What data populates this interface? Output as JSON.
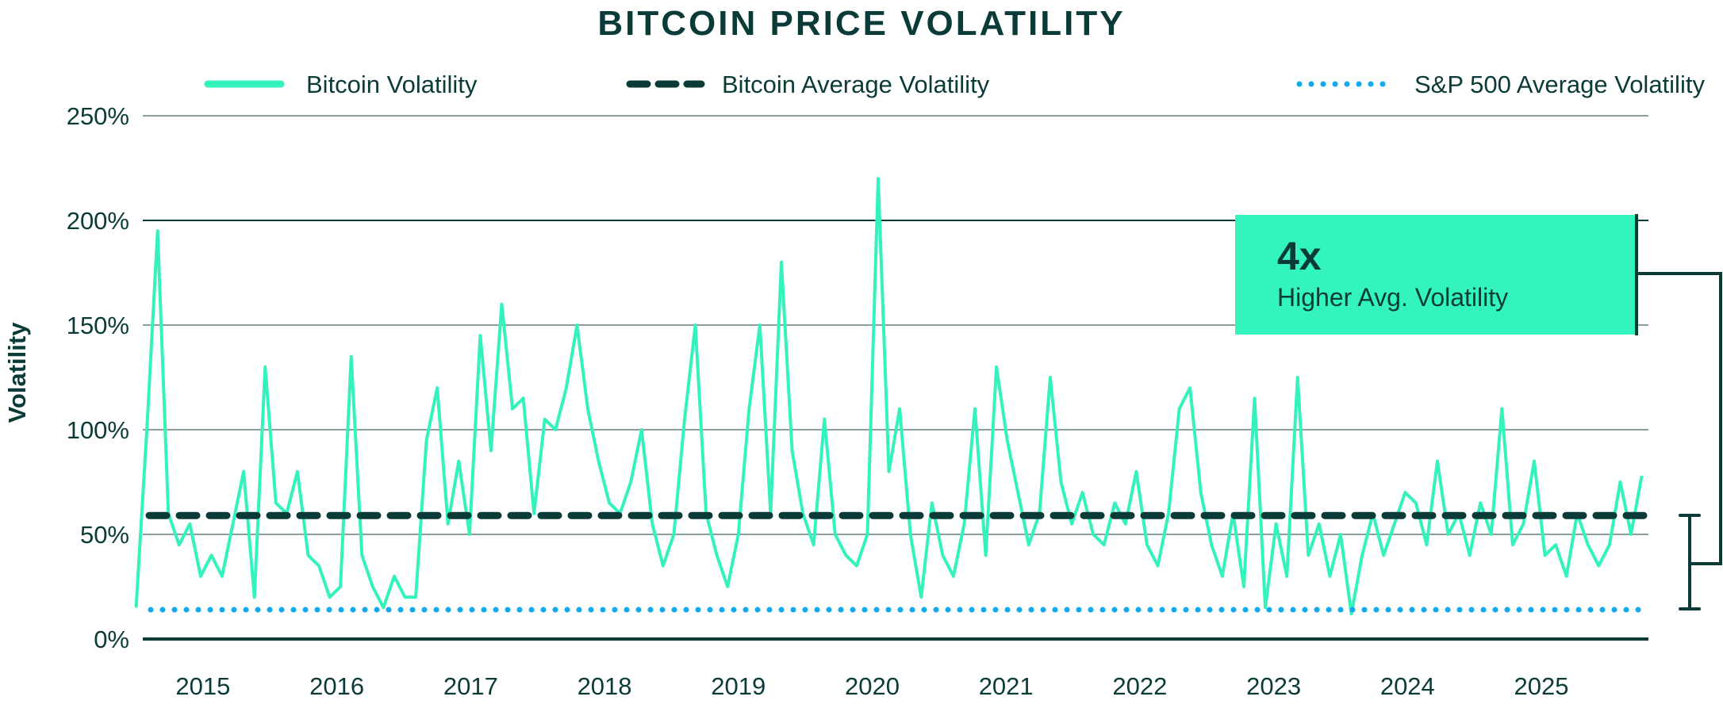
{
  "colors": {
    "text": "#0b3b38",
    "bitcoin_line": "#33f2bc",
    "average_line": "#0b3b38",
    "sp500_line": "#12a9f0",
    "grid": "#8a9e9c",
    "callout_fill": "#33f4bc"
  },
  "chart_data": {
    "type": "line",
    "title": "BITCOIN PRICE VOLATILITY",
    "ylabel": "Volatility",
    "xlabel": "",
    "ylim": [
      0,
      250
    ],
    "yticks": [
      "0%",
      "50%",
      "100%",
      "150%",
      "200%",
      "250%"
    ],
    "ytick_values": [
      0,
      50,
      100,
      150,
      200,
      250
    ],
    "xticks": [
      "2015",
      "2016",
      "2017",
      "2018",
      "2019",
      "2020",
      "2021",
      "2022",
      "2023",
      "2024",
      "2025"
    ],
    "x_range": [
      "2014-07",
      "2025-10"
    ],
    "grid": true,
    "legend_position": "top",
    "legend": [
      {
        "name": "Bitcoin Volatility",
        "style": "solid"
      },
      {
        "name": "Bitcoin Average Volatility",
        "style": "dashed"
      },
      {
        "name": "S&P 500 Average Volatility",
        "style": "dotted"
      }
    ],
    "series": [
      {
        "name": "Bitcoin Volatility",
        "start": "2014-07",
        "end": "2025-10",
        "values": [
          15,
          100,
          195,
          60,
          45,
          55,
          30,
          40,
          30,
          55,
          80,
          20,
          130,
          65,
          60,
          80,
          40,
          35,
          20,
          25,
          135,
          40,
          25,
          15,
          30,
          20,
          20,
          95,
          120,
          55,
          85,
          50,
          145,
          90,
          160,
          110,
          115,
          60,
          105,
          100,
          120,
          150,
          110,
          85,
          65,
          60,
          75,
          100,
          55,
          35,
          50,
          105,
          150,
          60,
          40,
          25,
          50,
          110,
          150,
          60,
          180,
          90,
          60,
          45,
          105,
          50,
          40,
          35,
          50,
          220,
          80,
          110,
          50,
          20,
          65,
          40,
          30,
          55,
          110,
          40,
          130,
          95,
          70,
          45,
          60,
          125,
          75,
          55,
          70,
          50,
          45,
          65,
          55,
          80,
          45,
          35,
          60,
          110,
          120,
          70,
          45,
          30,
          60,
          25,
          115,
          15,
          55,
          30,
          125,
          40,
          55,
          30,
          50,
          12,
          40,
          60,
          40,
          55,
          70,
          65,
          45,
          85,
          50,
          60,
          40,
          65,
          50,
          110,
          45,
          55,
          85,
          40,
          45,
          30,
          60,
          45,
          35,
          45,
          75,
          50,
          78
        ]
      },
      {
        "name": "Bitcoin Average Volatility",
        "constant": 59
      },
      {
        "name": "S&P 500 Average Volatility",
        "constant": 14
      }
    ],
    "annotation": {
      "headline": "4x",
      "text": "Higher Avg. Volatility"
    }
  }
}
